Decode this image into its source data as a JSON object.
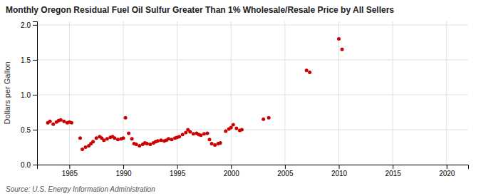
{
  "chart_data": {
    "type": "scatter",
    "title": "Monthly Oregon Residual Fuel Oil Sulfur Greater Than 1% Wholesale/Resale Price by All Sellers",
    "ylabel": "Dollars per Gallon",
    "annotations": [
      "Source: U.S. Energy Information Administration"
    ],
    "color": "#cc0000",
    "marker": "circle",
    "grid": true,
    "xlim": [
      1982,
      2022
    ],
    "ylim": [
      0.0,
      2.05
    ],
    "xticks": [
      1985,
      1990,
      1995,
      2000,
      2005,
      2010,
      2015,
      2020
    ],
    "yticks": [
      {
        "value": 0.0,
        "label": "0.0"
      },
      0.5,
      {
        "value": 1.0,
        "label": "1.0"
      },
      1.5,
      {
        "value": 2.0,
        "label": "2.0"
      }
    ],
    "x": [
      1983.0,
      1983.2,
      1983.5,
      1983.8,
      1984.0,
      1984.2,
      1984.5,
      1984.8,
      1985.0,
      1985.2,
      1986.0,
      1986.2,
      1986.5,
      1986.8,
      1987.0,
      1987.2,
      1987.5,
      1987.8,
      1988.0,
      1988.2,
      1988.5,
      1988.8,
      1989.0,
      1989.2,
      1989.5,
      1989.8,
      1990.0,
      1990.2,
      1990.5,
      1990.8,
      1991.0,
      1991.2,
      1991.5,
      1991.8,
      1992.0,
      1992.2,
      1992.5,
      1992.8,
      1993.0,
      1993.2,
      1993.5,
      1993.8,
      1994.0,
      1994.2,
      1994.5,
      1994.8,
      1995.0,
      1995.2,
      1995.5,
      1995.8,
      1996.0,
      1996.2,
      1996.5,
      1996.8,
      1997.0,
      1997.2,
      1997.5,
      1997.8,
      1998.0,
      1998.2,
      1998.5,
      1998.8,
      1999.0,
      1999.5,
      1999.8,
      2000.0,
      2000.2,
      2000.5,
      2000.8,
      2001.0,
      2003.0,
      2003.5,
      2007.0,
      2007.3,
      2010.0,
      2010.3
    ],
    "values": [
      0.6,
      0.62,
      0.58,
      0.61,
      0.63,
      0.64,
      0.62,
      0.6,
      0.61,
      0.6,
      0.38,
      0.22,
      0.25,
      0.27,
      0.3,
      0.33,
      0.38,
      0.4,
      0.38,
      0.35,
      0.37,
      0.39,
      0.4,
      0.38,
      0.36,
      0.37,
      0.38,
      0.67,
      0.45,
      0.37,
      0.3,
      0.29,
      0.27,
      0.29,
      0.31,
      0.3,
      0.29,
      0.31,
      0.33,
      0.34,
      0.35,
      0.34,
      0.35,
      0.37,
      0.36,
      0.38,
      0.39,
      0.4,
      0.43,
      0.46,
      0.5,
      0.47,
      0.44,
      0.45,
      0.43,
      0.42,
      0.44,
      0.45,
      0.36,
      0.3,
      0.28,
      0.3,
      0.31,
      0.48,
      0.51,
      0.53,
      0.57,
      0.52,
      0.49,
      0.5,
      0.65,
      0.67,
      1.35,
      1.32,
      1.8,
      1.65
    ]
  }
}
